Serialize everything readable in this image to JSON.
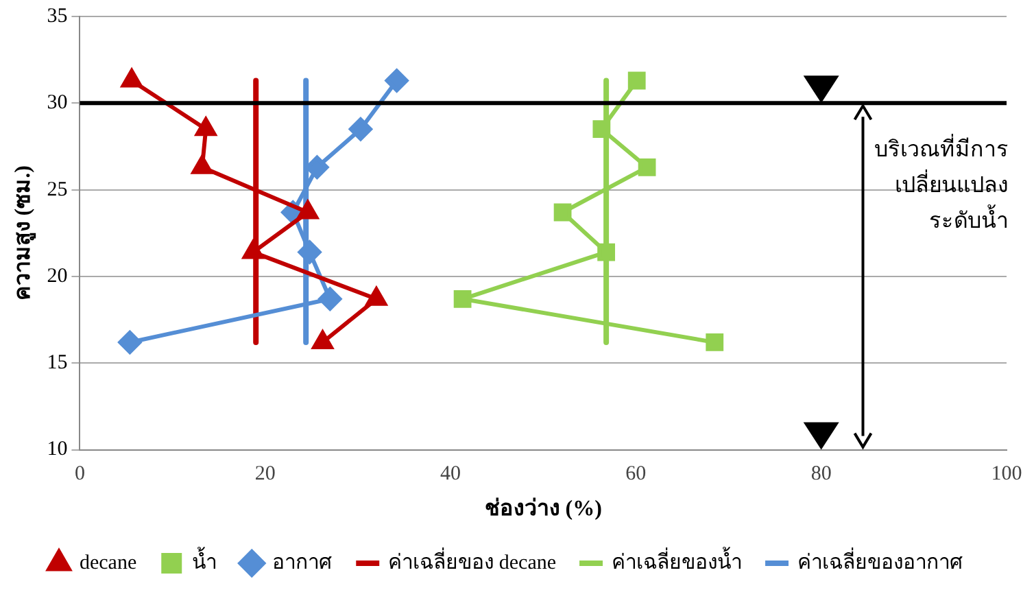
{
  "chart_data": {
    "type": "line",
    "xlabel": "ช่องว่าง (%)",
    "ylabel": "ความสูง (ซม.)",
    "xlim": [
      0,
      100
    ],
    "xticks": [
      0,
      20,
      40,
      60,
      80,
      100
    ],
    "ylim": [
      10,
      35
    ],
    "yticks": [
      10,
      15,
      20,
      25,
      30,
      35
    ],
    "grid": "y",
    "legend": "bottom",
    "series": [
      {
        "name": "decane",
        "color": "#c00000",
        "marker": "triangle",
        "x": [
          5.6,
          13.6,
          13.2,
          24.6,
          18.7,
          32,
          26.2
        ],
        "values": [
          31.3,
          28.5,
          26.3,
          23.7,
          21.4,
          18.7,
          16.2
        ]
      },
      {
        "name": "น้ำ",
        "color": "#92d050",
        "marker": "square",
        "x": [
          60.1,
          56.3,
          61.2,
          52.1,
          56.8,
          41.3,
          68.5
        ],
        "values": [
          31.3,
          28.5,
          26.3,
          23.7,
          21.4,
          18.7,
          16.2
        ]
      },
      {
        "name": "อากาศ",
        "color": "#558ed5",
        "marker": "diamond",
        "x": [
          34.2,
          30.3,
          25.6,
          23.0,
          24.8,
          27.0,
          5.4
        ],
        "values": [
          31.3,
          28.5,
          26.3,
          23.7,
          21.4,
          18.7,
          16.2
        ]
      },
      {
        "name": "ค่าเฉลี่ยของ decane",
        "color": "#c00000",
        "marker": "none",
        "x": [
          19.0,
          19.0
        ],
        "values": [
          31.3,
          16.2
        ]
      },
      {
        "name": "ค่าเฉลี่ยของน้ำ",
        "color": "#92d050",
        "marker": "none",
        "x": [
          56.8,
          56.8
        ],
        "values": [
          31.3,
          16.2
        ]
      },
      {
        "name": "ค่าเฉลี่ยของอากาศ",
        "color": "#558ed5",
        "marker": "none",
        "x": [
          24.4,
          24.4
        ],
        "values": [
          31.3,
          16.2
        ]
      }
    ],
    "ref_lines": [
      {
        "axis": "y",
        "value": 30,
        "color": "#000000"
      }
    ],
    "annotations": [
      "บริเวณที่มีการ\nเปลี่ยนแปลง\nระดับน้ำ"
    ]
  }
}
